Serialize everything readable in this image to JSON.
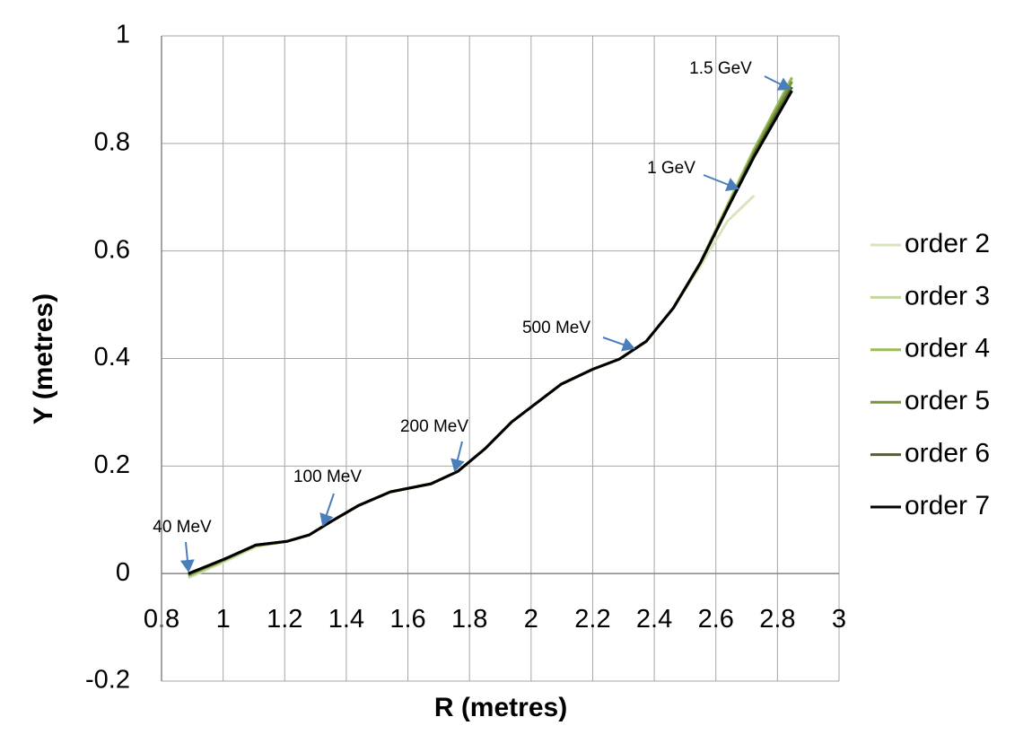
{
  "chart_data": {
    "type": "line",
    "xlabel": "R (metres)",
    "ylabel": "Y (metres)",
    "x": [
      0.887,
      1.004,
      1.106,
      1.208,
      1.28,
      1.354,
      1.441,
      1.543,
      1.675,
      1.762,
      1.85,
      1.937,
      2.024,
      2.097,
      2.2,
      2.287,
      2.374,
      2.462,
      2.55,
      2.637,
      2.724,
      2.847
    ],
    "series": [
      {
        "name": "order 2",
        "color": "#d7e4bd",
        "values": [
          -0.008,
          0.022,
          0.05,
          0.06,
          0.072,
          0.098,
          0.127,
          0.152,
          0.167,
          0.19,
          0.232,
          0.282,
          0.32,
          0.352,
          0.38,
          0.399,
          0.432,
          0.494,
          0.572,
          0.655,
          0.703,
          null
        ]
      },
      {
        "name": "order 3",
        "color": "#c3d69b",
        "values": [
          -0.006,
          0.024,
          0.051,
          0.06,
          0.072,
          0.098,
          0.127,
          0.152,
          0.167,
          0.19,
          0.232,
          0.282,
          0.32,
          0.352,
          0.38,
          0.399,
          0.432,
          0.494,
          0.58,
          0.685,
          0.79,
          0.92
        ]
      },
      {
        "name": "order 4",
        "color": "#9bbb59",
        "values": [
          -0.004,
          0.025,
          0.052,
          0.06,
          0.072,
          0.098,
          0.127,
          0.152,
          0.167,
          0.19,
          0.232,
          0.282,
          0.32,
          0.352,
          0.38,
          0.399,
          0.432,
          0.494,
          0.579,
          0.683,
          0.788,
          0.923
        ]
      },
      {
        "name": "order 5",
        "color": "#77933c",
        "values": [
          -0.002,
          0.026,
          0.053,
          0.06,
          0.072,
          0.098,
          0.127,
          0.152,
          0.167,
          0.19,
          0.232,
          0.282,
          0.32,
          0.352,
          0.38,
          0.399,
          0.432,
          0.494,
          0.578,
          0.68,
          0.783,
          0.915
        ]
      },
      {
        "name": "order 6",
        "color": "#4f6228",
        "values": [
          -0.001,
          0.027,
          0.053,
          0.06,
          0.072,
          0.098,
          0.127,
          0.152,
          0.167,
          0.19,
          0.232,
          0.282,
          0.32,
          0.352,
          0.38,
          0.399,
          0.432,
          0.494,
          0.578,
          0.679,
          0.779,
          0.905
        ]
      },
      {
        "name": "order 7",
        "color": "#000000",
        "values": [
          0,
          0.027,
          0.053,
          0.06,
          0.072,
          0.098,
          0.127,
          0.152,
          0.167,
          0.19,
          0.232,
          0.282,
          0.32,
          0.352,
          0.38,
          0.399,
          0.432,
          0.494,
          0.578,
          0.678,
          0.775,
          0.898
        ]
      }
    ],
    "annotations": [
      "40 MeV",
      "100 MeV",
      "200 MeV",
      "500 MeV",
      "1 GeV",
      "1.5 GeV"
    ],
    "xlim": [
      0.8,
      3
    ],
    "xticks": [
      0.8,
      1,
      1.2,
      1.4,
      1.6,
      1.8,
      2,
      2.2,
      2.4,
      2.6,
      2.8,
      3
    ],
    "ylim": [
      -0.2,
      1
    ],
    "yticks": [
      -0.2,
      0,
      0.2,
      0.4,
      0.6,
      0.8,
      1
    ],
    "grid": true,
    "legend": "right"
  }
}
